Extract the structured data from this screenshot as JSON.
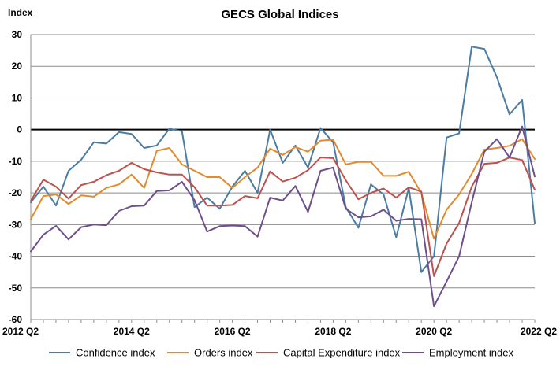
{
  "chart_data": {
    "type": "line",
    "title": "GECS Global Indices",
    "ylabel": "Index",
    "xlabel": "",
    "ylim": [
      -60,
      30
    ],
    "yticks": [
      30,
      20,
      10,
      0,
      -10,
      -20,
      -30,
      -40,
      -50,
      -60
    ],
    "x_tick_labels": [
      "2012 Q2",
      "2014 Q2",
      "2016 Q2",
      "2018 Q2",
      "2020 Q2",
      "2022 Q2"
    ],
    "x_tick_indices": [
      0,
      8,
      16,
      24,
      32,
      40
    ],
    "grid": true,
    "zero_line": true,
    "legend_position": "bottom",
    "categories": [
      "2012 Q2",
      "2012 Q3",
      "2012 Q4",
      "2013 Q1",
      "2013 Q2",
      "2013 Q3",
      "2013 Q4",
      "2014 Q1",
      "2014 Q2",
      "2014 Q3",
      "2014 Q4",
      "2015 Q1",
      "2015 Q2",
      "2015 Q3",
      "2015 Q4",
      "2016 Q1",
      "2016 Q2",
      "2016 Q3",
      "2016 Q4",
      "2017 Q1",
      "2017 Q2",
      "2017 Q3",
      "2017 Q4",
      "2018 Q1",
      "2018 Q2",
      "2018 Q3",
      "2018 Q4",
      "2019 Q1",
      "2019 Q2",
      "2019 Q3",
      "2019 Q4",
      "2020 Q1",
      "2020 Q2",
      "2020 Q3",
      "2020 Q4",
      "2021 Q1",
      "2021 Q2",
      "2021 Q3",
      "2021 Q4",
      "2022 Q1",
      "2022 Q2"
    ],
    "series": [
      {
        "name": "Confidence index",
        "color": "#4a7ca4",
        "values": [
          -23,
          -18,
          -24,
          -13,
          -9.5,
          -4,
          -4.4,
          -0.8,
          -1.4,
          -5.8,
          -5,
          0.3,
          -0.5,
          -24.5,
          -21.5,
          -25,
          -18,
          -13,
          -20,
          0,
          -10.5,
          -5,
          -12,
          0.5,
          -4,
          -24.5,
          -31,
          -17.3,
          -20.5,
          -34,
          -18.5,
          -45,
          -40,
          -2.5,
          -1.2,
          26.2,
          25.5,
          16.5,
          4.8,
          9.4,
          -29.5
        ]
      },
      {
        "name": "Orders index",
        "color": "#e38a2d",
        "values": [
          -28.3,
          -21,
          -20.5,
          -23.5,
          -20.8,
          -21.2,
          -18.4,
          -17.3,
          -14.2,
          -18.4,
          -6.7,
          -5.8,
          -11,
          -13,
          -15,
          -15,
          -18.4,
          -15,
          -12,
          -6,
          -8,
          -5.5,
          -7,
          -3.5,
          -3.2,
          -11,
          -10.2,
          -10.2,
          -14.6,
          -14.6,
          -13.3,
          -20,
          -34.5,
          -25.3,
          -20.5,
          -14,
          -6.3,
          -5.8,
          -5.1,
          -3,
          -9.3
        ]
      },
      {
        "name": "Capital Expenditure index",
        "color": "#c0504d",
        "values": [
          -22.5,
          -15.8,
          -18,
          -21.8,
          -17.5,
          -16.5,
          -14.4,
          -13,
          -10.5,
          -12.5,
          -13.5,
          -14.2,
          -14.2,
          -18.2,
          -24,
          -24,
          -23.8,
          -21,
          -21.7,
          -13.2,
          -16.4,
          -15.2,
          -12.8,
          -8.8,
          -9,
          -16,
          -22,
          -20,
          -18.6,
          -21.5,
          -18.2,
          -19.6,
          -46.3,
          -36,
          -29.5,
          -18,
          -10.8,
          -10.5,
          -8.8,
          -9.6,
          -19
        ]
      },
      {
        "name": "Employment index",
        "color": "#6e4f8c",
        "values": [
          -38.5,
          -33.2,
          -30.4,
          -34.7,
          -30.8,
          -30,
          -30.2,
          -25.7,
          -24.2,
          -24,
          -19.4,
          -19.2,
          -16.5,
          -22.3,
          -32.2,
          -30.5,
          -30.3,
          -30.5,
          -33.8,
          -21.5,
          -22.4,
          -17.8,
          -26,
          -13,
          -12,
          -25,
          -27.7,
          -27.4,
          -25.3,
          -28.8,
          -28.2,
          -28.3,
          -55.8,
          -48,
          -40,
          -23,
          -7,
          -3,
          -8.8,
          1,
          -14.8
        ]
      }
    ]
  }
}
